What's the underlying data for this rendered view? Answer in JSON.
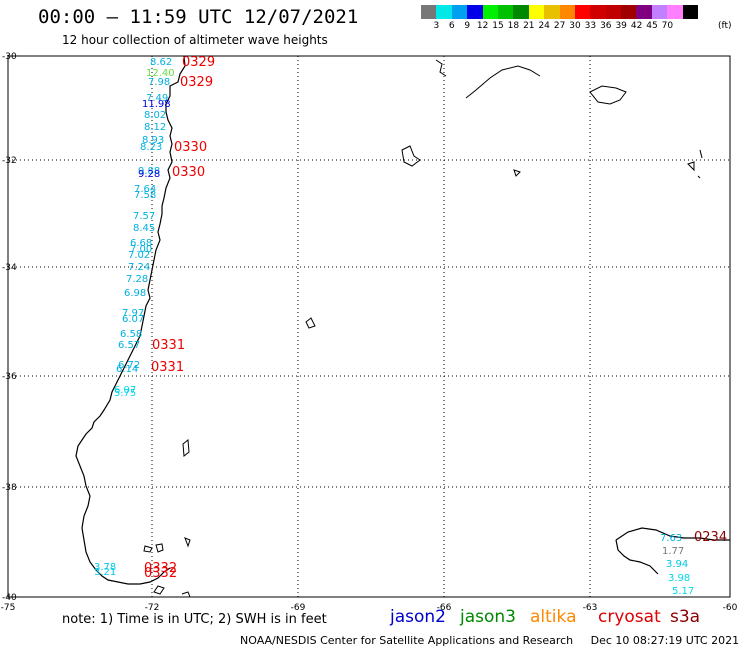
{
  "title": "00:00 – 11:59 UTC 12/07/2021",
  "subtitle": "12 hour collection of altimeter wave heights",
  "note": "note:  1) Time is in UTC;  2) SWH is in feet",
  "footer": "NOAA/NESDIS Center for Satellite Applications and Research     Dec 10 08:27:19 UTC 2021",
  "legend": {
    "colors": [
      "#777777",
      "#00e8e8",
      "#00a0f0",
      "#0000e8",
      "#00f000",
      "#00c000",
      "#008800",
      "#ffff00",
      "#e8c000",
      "#ff8800",
      "#ff0000",
      "#d00000",
      "#c00000",
      "#a00000",
      "#800080",
      "#c080ff",
      "#ff80ff",
      "#000000"
    ],
    "ticks": [
      "3",
      "6",
      "9",
      "12",
      "15",
      "18",
      "21",
      "24",
      "27",
      "30",
      "33",
      "36",
      "39",
      "42",
      "45",
      "70"
    ],
    "unit": "(ft)"
  },
  "satellites": [
    {
      "name": "jason2",
      "color": "#0000cc"
    },
    {
      "name": "jason3",
      "color": "#008800"
    },
    {
      "name": "altika",
      "color": "#ff8800"
    },
    {
      "name": "cryosat",
      "color": "#dd0000"
    },
    {
      "name": "s3a",
      "color": "#880000"
    }
  ],
  "axes": {
    "lat_labels": [
      "-30",
      "-32",
      "-34",
      "-36",
      "-38",
      "-40"
    ],
    "lon_labels": [
      "-75",
      "-72",
      "-69",
      "-66",
      "-63",
      "-60"
    ]
  },
  "passes": [
    {
      "time": "0329",
      "color": "#ee0000"
    },
    {
      "time": "0329",
      "color": "#ee0000"
    },
    {
      "time": "0330",
      "color": "#ee0000"
    },
    {
      "time": "0330",
      "color": "#ee0000"
    },
    {
      "time": "0331",
      "color": "#ee0000"
    },
    {
      "time": "0331",
      "color": "#ee0000"
    },
    {
      "time": "0332",
      "color": "#ee0000"
    },
    {
      "time": "0332",
      "color": "#ee0000"
    },
    {
      "time": "0234",
      "color": "#880000"
    }
  ],
  "wave_heights": [
    {
      "value": "8.62",
      "color": "#00b0e0"
    },
    {
      "value": "12.40",
      "color": "#66dd44"
    },
    {
      "value": "7.98",
      "color": "#00b0e0"
    },
    {
      "value": "7.49",
      "color": "#00b0e0"
    },
    {
      "value": "11.98",
      "color": "#0000dd"
    },
    {
      "value": "8.02",
      "color": "#00b0e0"
    },
    {
      "value": "8.12",
      "color": "#00b0e0"
    },
    {
      "value": "8.93",
      "color": "#00b0e0"
    },
    {
      "value": "8.23",
      "color": "#00b0e0"
    },
    {
      "value": "9.88",
      "color": "#00b0e0"
    },
    {
      "value": "9.28",
      "color": "#0000dd"
    },
    {
      "value": "7.64",
      "color": "#00b0e0"
    },
    {
      "value": "7.58",
      "color": "#00b0e0"
    },
    {
      "value": "7.57",
      "color": "#00b0e0"
    },
    {
      "value": "8.45",
      "color": "#00b0e0"
    },
    {
      "value": "6.68",
      "color": "#00b0e0"
    },
    {
      "value": "7.00",
      "color": "#00b0e0"
    },
    {
      "value": "7.02",
      "color": "#00b0e0"
    },
    {
      "value": "7.24",
      "color": "#00b0e0"
    },
    {
      "value": "7.28",
      "color": "#00b0e0"
    },
    {
      "value": "6.98",
      "color": "#00b0e0"
    },
    {
      "value": "7.97",
      "color": "#00b0e0"
    },
    {
      "value": "6.07",
      "color": "#00b0e0"
    },
    {
      "value": "6.58",
      "color": "#00b0e0"
    },
    {
      "value": "6.57",
      "color": "#00b0e0"
    },
    {
      "value": "6.72",
      "color": "#00b0e0"
    },
    {
      "value": "6.14",
      "color": "#00b0e0"
    },
    {
      "value": "6.07",
      "color": "#00d8e8"
    },
    {
      "value": "5.75",
      "color": "#00d8e8"
    },
    {
      "value": "3.78",
      "color": "#00c8e8"
    },
    {
      "value": "3.21",
      "color": "#00c8e8"
    },
    {
      "value": "7.63",
      "color": "#00b0e0"
    },
    {
      "value": "1.77",
      "color": "#777777"
    },
    {
      "value": "3.94",
      "color": "#00c8e8"
    },
    {
      "value": "3.98",
      "color": "#00d8e8"
    },
    {
      "value": "5.17",
      "color": "#00d8e8"
    }
  ]
}
